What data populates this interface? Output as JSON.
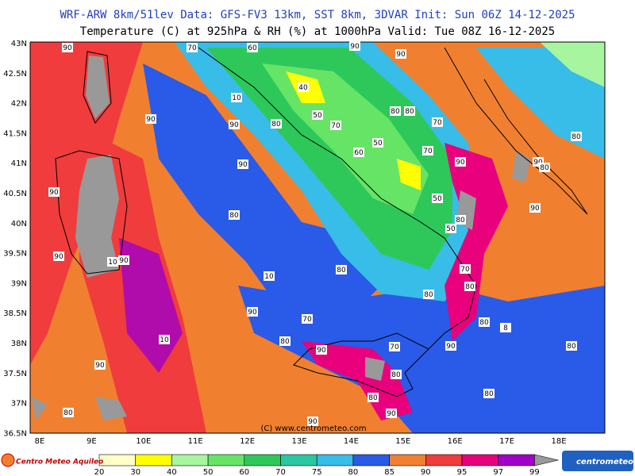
{
  "header": {
    "line1": "WRF-ARW 8km/51lev  Data: GFS-FV3 13km, SST 8km, 3DVAR  Init: Sun 06Z 14-12-2025",
    "line2": "Temperature (C) at 925hPa & RH (%) at 1000hPa  Valid: Tue 08Z 16-12-2025"
  },
  "lat_labels": [
    "43N",
    "42.5N",
    "42N",
    "41.5N",
    "41N",
    "40.5N",
    "40N",
    "39.5N",
    "39N",
    "38.5N",
    "38N",
    "37.5N",
    "37N",
    "36.5N"
  ],
  "lon_labels": [
    "8E",
    "9E",
    "10E",
    "11E",
    "12E",
    "13E",
    "14E",
    "15E",
    "16E",
    "17E",
    "18E"
  ],
  "contour_labels": [
    "90",
    "70",
    "60",
    "90",
    "90",
    "40",
    "10",
    "50",
    "80",
    "70",
    "80",
    "80",
    "70",
    "90",
    "90",
    "50",
    "60",
    "70",
    "80",
    "90",
    "90",
    "90",
    "80",
    "90",
    "50",
    "90",
    "80",
    "80",
    "50",
    "90",
    "10",
    "90",
    "70",
    "10",
    "80",
    "80",
    "80",
    "90",
    "70",
    "80",
    "8",
    "10",
    "80",
    "90",
    "70",
    "90",
    "80",
    "90",
    "80",
    "80",
    "80",
    "90",
    "80",
    "90"
  ],
  "copyright": "(C) www.centrometeo.com",
  "logo_left": "Centro Meteo Aquileo",
  "logo_right": "centrometeo",
  "legend": {
    "values": [
      20,
      30,
      40,
      50,
      60,
      70,
      75,
      80,
      85,
      90,
      95,
      97,
      99
    ],
    "colors": [
      "#ffffc8",
      "#ffff00",
      "#a8f5a0",
      "#66e466",
      "#2ec85a",
      "#28c8a0",
      "#38bce8",
      "#2a5ae8",
      "#f08030",
      "#f03c3c",
      "#e8007c",
      "#a000c8"
    ]
  }
}
